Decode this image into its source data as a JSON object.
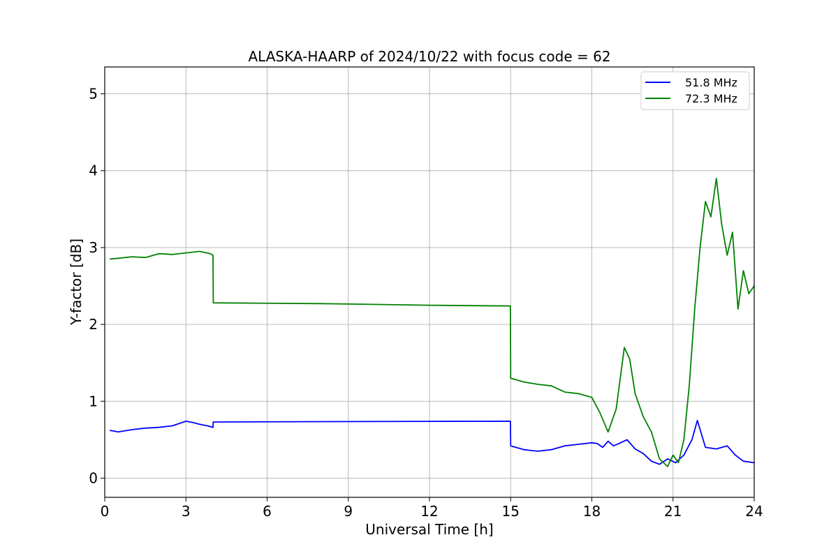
{
  "chart_data": {
    "type": "line",
    "title": "ALASKA-HAARP of 2024/10/22 with focus code = 62",
    "xlabel": "Universal Time [h]",
    "ylabel": "Y-factor [dB]",
    "xlim": [
      0,
      24
    ],
    "ylim": [
      -0.25,
      5.35
    ],
    "xticks": [
      0,
      3,
      6,
      9,
      12,
      15,
      18,
      21,
      24
    ],
    "yticks": [
      0,
      1,
      2,
      3,
      4,
      5
    ],
    "grid": true,
    "legend_position": "top-right",
    "series": [
      {
        "name": "51.8 MHz",
        "color": "#0000ff",
        "x": [
          0.2,
          0.5,
          1.0,
          1.5,
          2.0,
          2.5,
          3.0,
          3.3,
          3.5,
          3.8,
          4.0,
          4.01,
          8.0,
          12.0,
          14.99,
          15.0,
          15.5,
          16.0,
          16.5,
          17.0,
          17.5,
          18.0,
          18.2,
          18.4,
          18.6,
          18.8,
          19.0,
          19.3,
          19.6,
          19.9,
          20.2,
          20.5,
          20.8,
          21.1,
          21.4,
          21.7,
          21.9,
          22.2,
          22.6,
          23.0,
          23.3,
          23.6,
          24.0
        ],
        "y": [
          0.62,
          0.6,
          0.63,
          0.65,
          0.66,
          0.68,
          0.74,
          0.72,
          0.7,
          0.68,
          0.66,
          0.73,
          0.735,
          0.738,
          0.74,
          0.42,
          0.37,
          0.35,
          0.37,
          0.42,
          0.44,
          0.46,
          0.45,
          0.4,
          0.48,
          0.42,
          0.45,
          0.5,
          0.38,
          0.32,
          0.22,
          0.18,
          0.25,
          0.2,
          0.3,
          0.5,
          0.75,
          0.4,
          0.38,
          0.42,
          0.3,
          0.22,
          0.2
        ]
      },
      {
        "name": "72.3 MHz",
        "color": "#008000",
        "x": [
          0.2,
          0.5,
          1.0,
          1.5,
          2.0,
          2.5,
          3.0,
          3.5,
          3.9,
          4.0,
          4.01,
          8.0,
          12.0,
          14.99,
          15.0,
          15.5,
          16.0,
          16.5,
          17.0,
          17.5,
          18.0,
          18.3,
          18.6,
          18.9,
          19.2,
          19.4,
          19.6,
          19.9,
          20.2,
          20.5,
          20.8,
          21.0,
          21.2,
          21.4,
          21.6,
          21.8,
          22.0,
          22.2,
          22.4,
          22.6,
          22.8,
          23.0,
          23.2,
          23.4,
          23.6,
          23.8,
          24.0
        ],
        "y": [
          2.85,
          2.86,
          2.88,
          2.87,
          2.92,
          2.91,
          2.93,
          2.95,
          2.92,
          2.9,
          2.28,
          2.27,
          2.25,
          2.24,
          1.3,
          1.25,
          1.22,
          1.2,
          1.12,
          1.1,
          1.05,
          0.85,
          0.6,
          0.9,
          1.7,
          1.55,
          1.1,
          0.8,
          0.6,
          0.25,
          0.15,
          0.3,
          0.2,
          0.5,
          1.2,
          2.2,
          3.0,
          3.6,
          3.4,
          3.9,
          3.3,
          2.9,
          3.2,
          2.2,
          2.7,
          2.4,
          2.5
        ]
      }
    ]
  }
}
